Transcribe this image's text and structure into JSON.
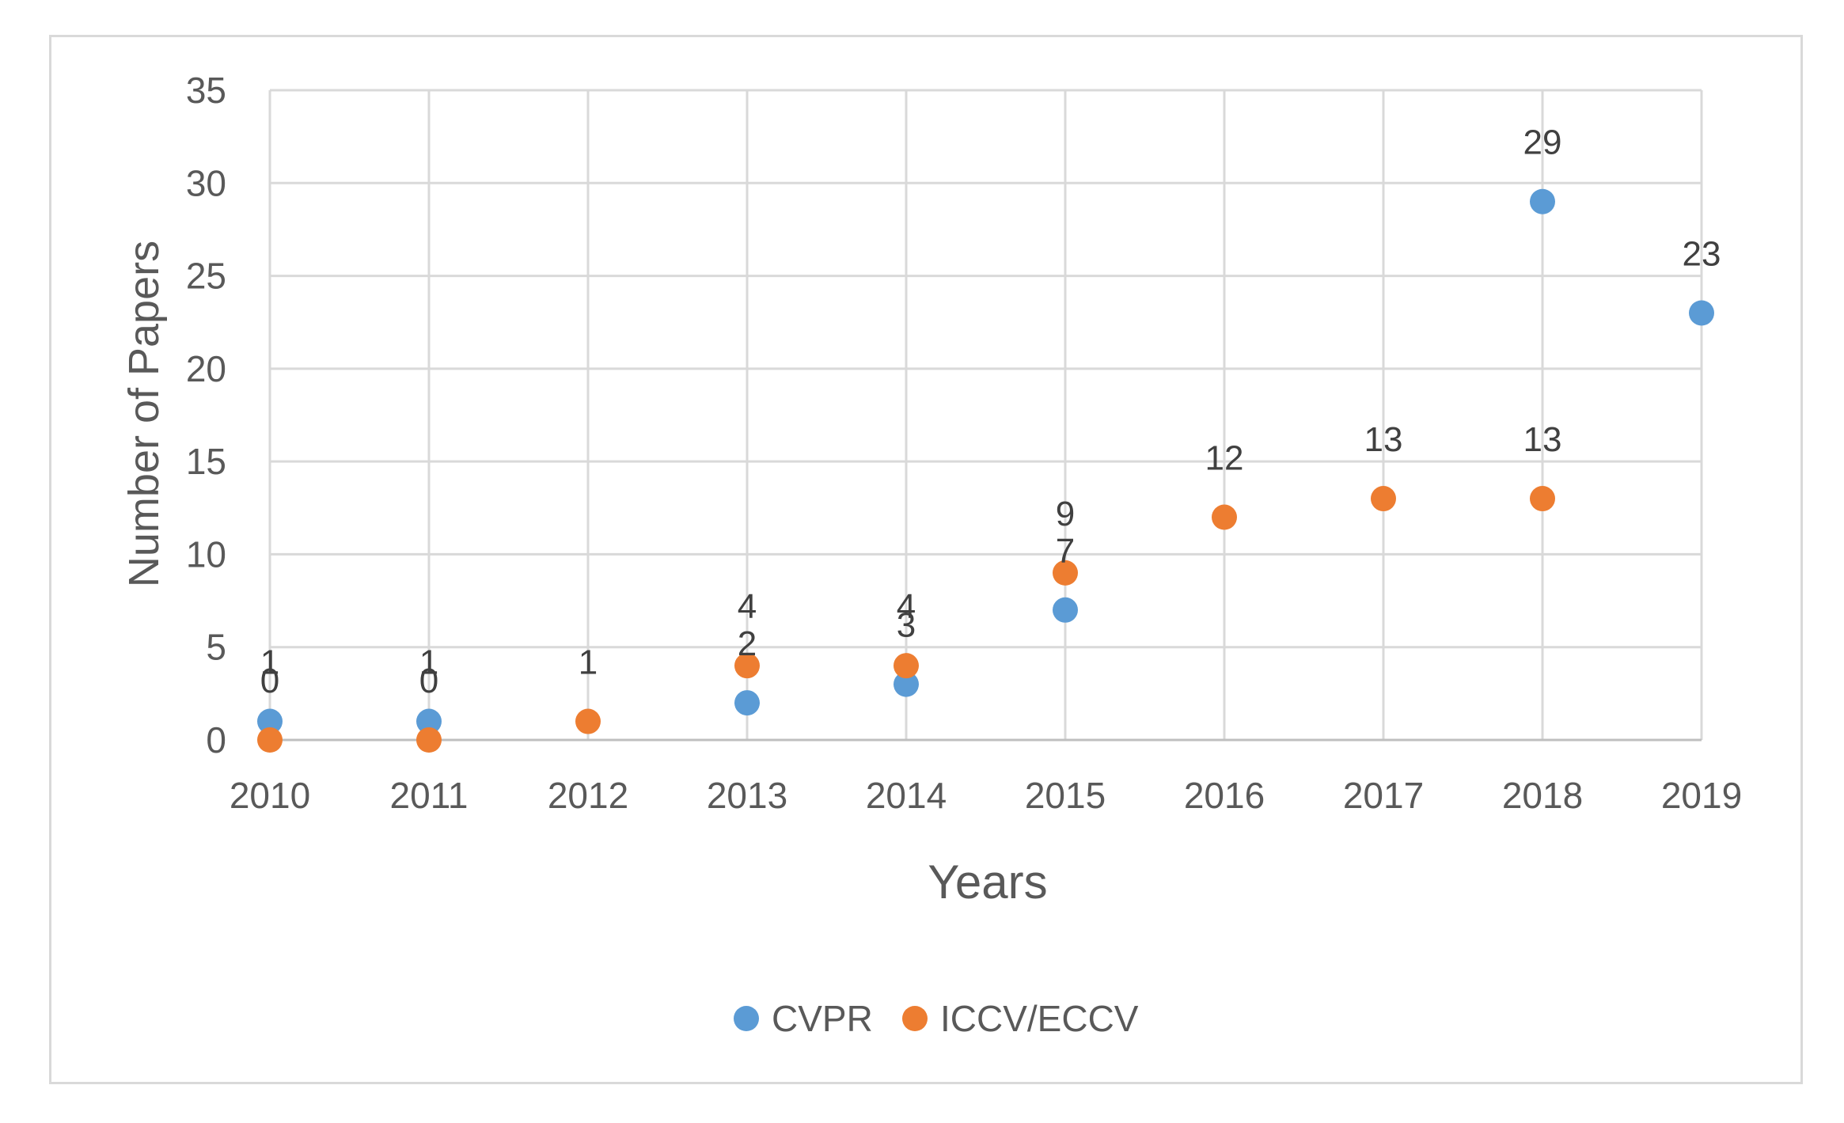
{
  "chart_data": {
    "type": "scatter",
    "categories": [
      "2010",
      "2011",
      "2012",
      "2013",
      "2014",
      "2015",
      "2016",
      "2017",
      "2018",
      "2019"
    ],
    "series": [
      {
        "name": "CVPR",
        "color": "#5b9bd5",
        "values": [
          1,
          1,
          null,
          2,
          3,
          7,
          null,
          null,
          29,
          23
        ]
      },
      {
        "name": "ICCV/ECCV",
        "color": "#ed7d31",
        "values": [
          0,
          0,
          1,
          4,
          4,
          9,
          12,
          13,
          13,
          null
        ]
      }
    ],
    "title": "",
    "xlabel": "Years",
    "ylabel": "Number of Papers",
    "ylim": [
      0,
      35
    ],
    "yticks": [
      0,
      5,
      10,
      15,
      20,
      25,
      30,
      35
    ],
    "grid": true,
    "legend": "bottom-center"
  }
}
